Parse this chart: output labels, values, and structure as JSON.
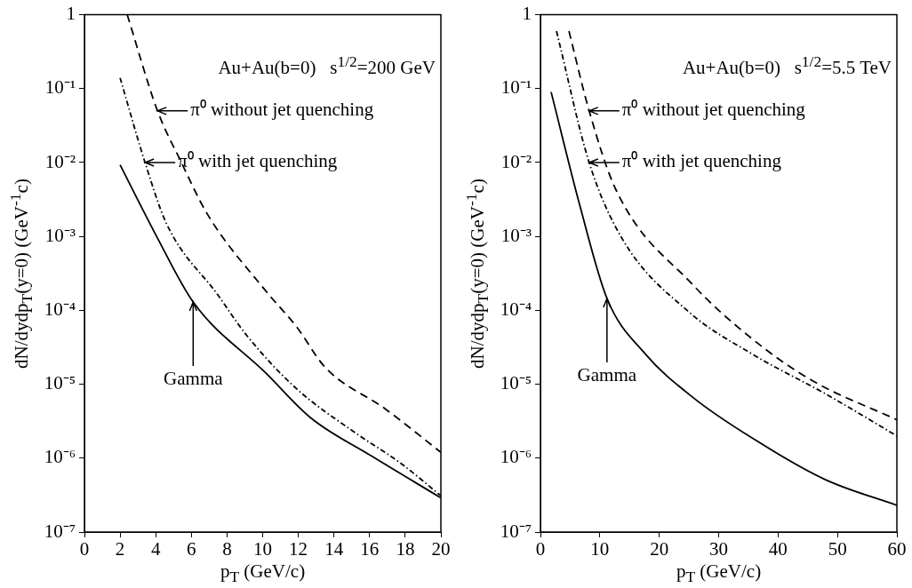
{
  "chart_data": [
    {
      "type": "line",
      "title": "Au+Au(b=0)   s$^{1/2}$=200 GeV",
      "xlabel": "p$_{T}$ (GeV/c)",
      "ylabel": "dN/dydp$_{T}$(y=0) (GeV$^{-1}$c)",
      "log": "y",
      "legend": false,
      "marker": "none",
      "xlim": [
        0,
        20
      ],
      "xticks": [
        0,
        2,
        4,
        6,
        8,
        10,
        12,
        14,
        16,
        18,
        20
      ],
      "ylim": [
        1e-07,
        1
      ],
      "yticks": [
        {
          "value": 1e-07,
          "label": "10⁻⁷"
        },
        {
          "value": 1e-06,
          "label": "10⁻⁶"
        },
        {
          "value": 1e-05,
          "label": "10⁻⁵"
        },
        {
          "value": 0.0001,
          "label": "10⁻⁴"
        },
        {
          "value": 0.001,
          "label": "10⁻³"
        },
        {
          "value": 0.01,
          "label": "10⁻²"
        },
        {
          "value": 0.1,
          "label": "10⁻¹"
        },
        1
      ],
      "series": [
        {
          "color": "#000000",
          "line_style": "dashed",
          "x": [
            2.4,
            4.1,
            5.4,
            6.9,
            10.2,
            11.9,
            13.5,
            16.9,
            20
          ],
          "values": [
            1,
            0.05,
            0.0105,
            0.002,
            0.00018,
            6e-05,
            1.7e-05,
            4.6e-06,
            1.2e-06
          ]
        },
        {
          "color": "#000000",
          "line_style": "dotted",
          "x": [
            2,
            3.4,
            4.6,
            7.5,
            9.1,
            11.9,
            15.2,
            17.7,
            20
          ],
          "values": [
            0.14,
            0.01,
            0.0015,
            0.00016,
            4.6e-05,
            8.7e-06,
            2.2e-06,
            8.7e-07,
            3.1e-07
          ]
        },
        {
          "color": "#000000",
          "line_style": "solid",
          "x": [
            2,
            4.1,
            6.1,
            10.2,
            12.7,
            16.1,
            20
          ],
          "values": [
            0.0093,
            0.00095,
            0.00013,
            1.4e-05,
            3.5e-06,
            1.07e-06,
            2.9e-07
          ]
        }
      ],
      "annotations": [
        {
          "text": "π⁰ without jet quenching",
          "x": 4.1,
          "y": 0.05
        },
        {
          "text": "π⁰ with jet quenching",
          "x": 3.4,
          "y": 0.01
        },
        {
          "text": "Gamma",
          "x": 6.1,
          "y": 0.00013
        }
      ]
    },
    {
      "type": "line",
      "title": "Au+Au(b=0)   s$^{1/2}$=5.5 TeV",
      "xlabel": "p$_{T}$ (GeV/c)",
      "ylabel": "dN/dydp$_{T}$(y=0) (GeV$^{-1}$c)",
      "log": "y",
      "legend": false,
      "marker": "none",
      "xlim": [
        0,
        60
      ],
      "xticks": [
        0,
        10,
        20,
        30,
        40,
        50,
        60
      ],
      "ylim": [
        1e-07,
        1
      ],
      "yticks": [
        {
          "value": 1e-07,
          "label": "10⁻⁷"
        },
        {
          "value": 1e-06,
          "label": "10⁻⁶"
        },
        {
          "value": 1e-05,
          "label": "10⁻⁵"
        },
        {
          "value": 0.0001,
          "label": "10⁻⁴"
        },
        {
          "value": 0.001,
          "label": "10⁻³"
        },
        {
          "value": 0.01,
          "label": "10⁻²"
        },
        {
          "value": 0.1,
          "label": "10⁻¹"
        },
        1
      ],
      "series": [
        {
          "color": "#000000",
          "line_style": "dashed",
          "x": [
            4.8,
            8.2,
            12.7,
            25.7,
            35.5,
            45.5,
            60
          ],
          "values": [
            0.6,
            0.05,
            0.0043,
            0.00022,
            4.2e-05,
            1.15e-05,
            3.3e-06
          ]
        },
        {
          "color": "#000000",
          "line_style": "dotted",
          "x": [
            2.7,
            8.2,
            13.7,
            25,
            35.5,
            48,
            60
          ],
          "values": [
            0.6,
            0.01,
            0.00095,
            9.5e-05,
            2.6e-05,
            7.4e-06,
            2e-06
          ]
        },
        {
          "color": "#000000",
          "line_style": "solid",
          "x": [
            1.8,
            6.7,
            11.2,
            17.6,
            25.7,
            35.5,
            48,
            60
          ],
          "values": [
            0.09,
            0.0025,
            0.000145,
            2.6e-05,
            6.6e-06,
            1.9e-06,
            5.1e-07,
            2.3e-07
          ]
        }
      ],
      "annotations": [
        {
          "text": "π⁰ without jet quenching",
          "x": 8.2,
          "y": 0.05
        },
        {
          "text": "π⁰ with jet quenching",
          "x": 8.2,
          "y": 0.01
        },
        {
          "text": "Gamma",
          "x": 11.2,
          "y": 0.000145
        }
      ]
    }
  ]
}
